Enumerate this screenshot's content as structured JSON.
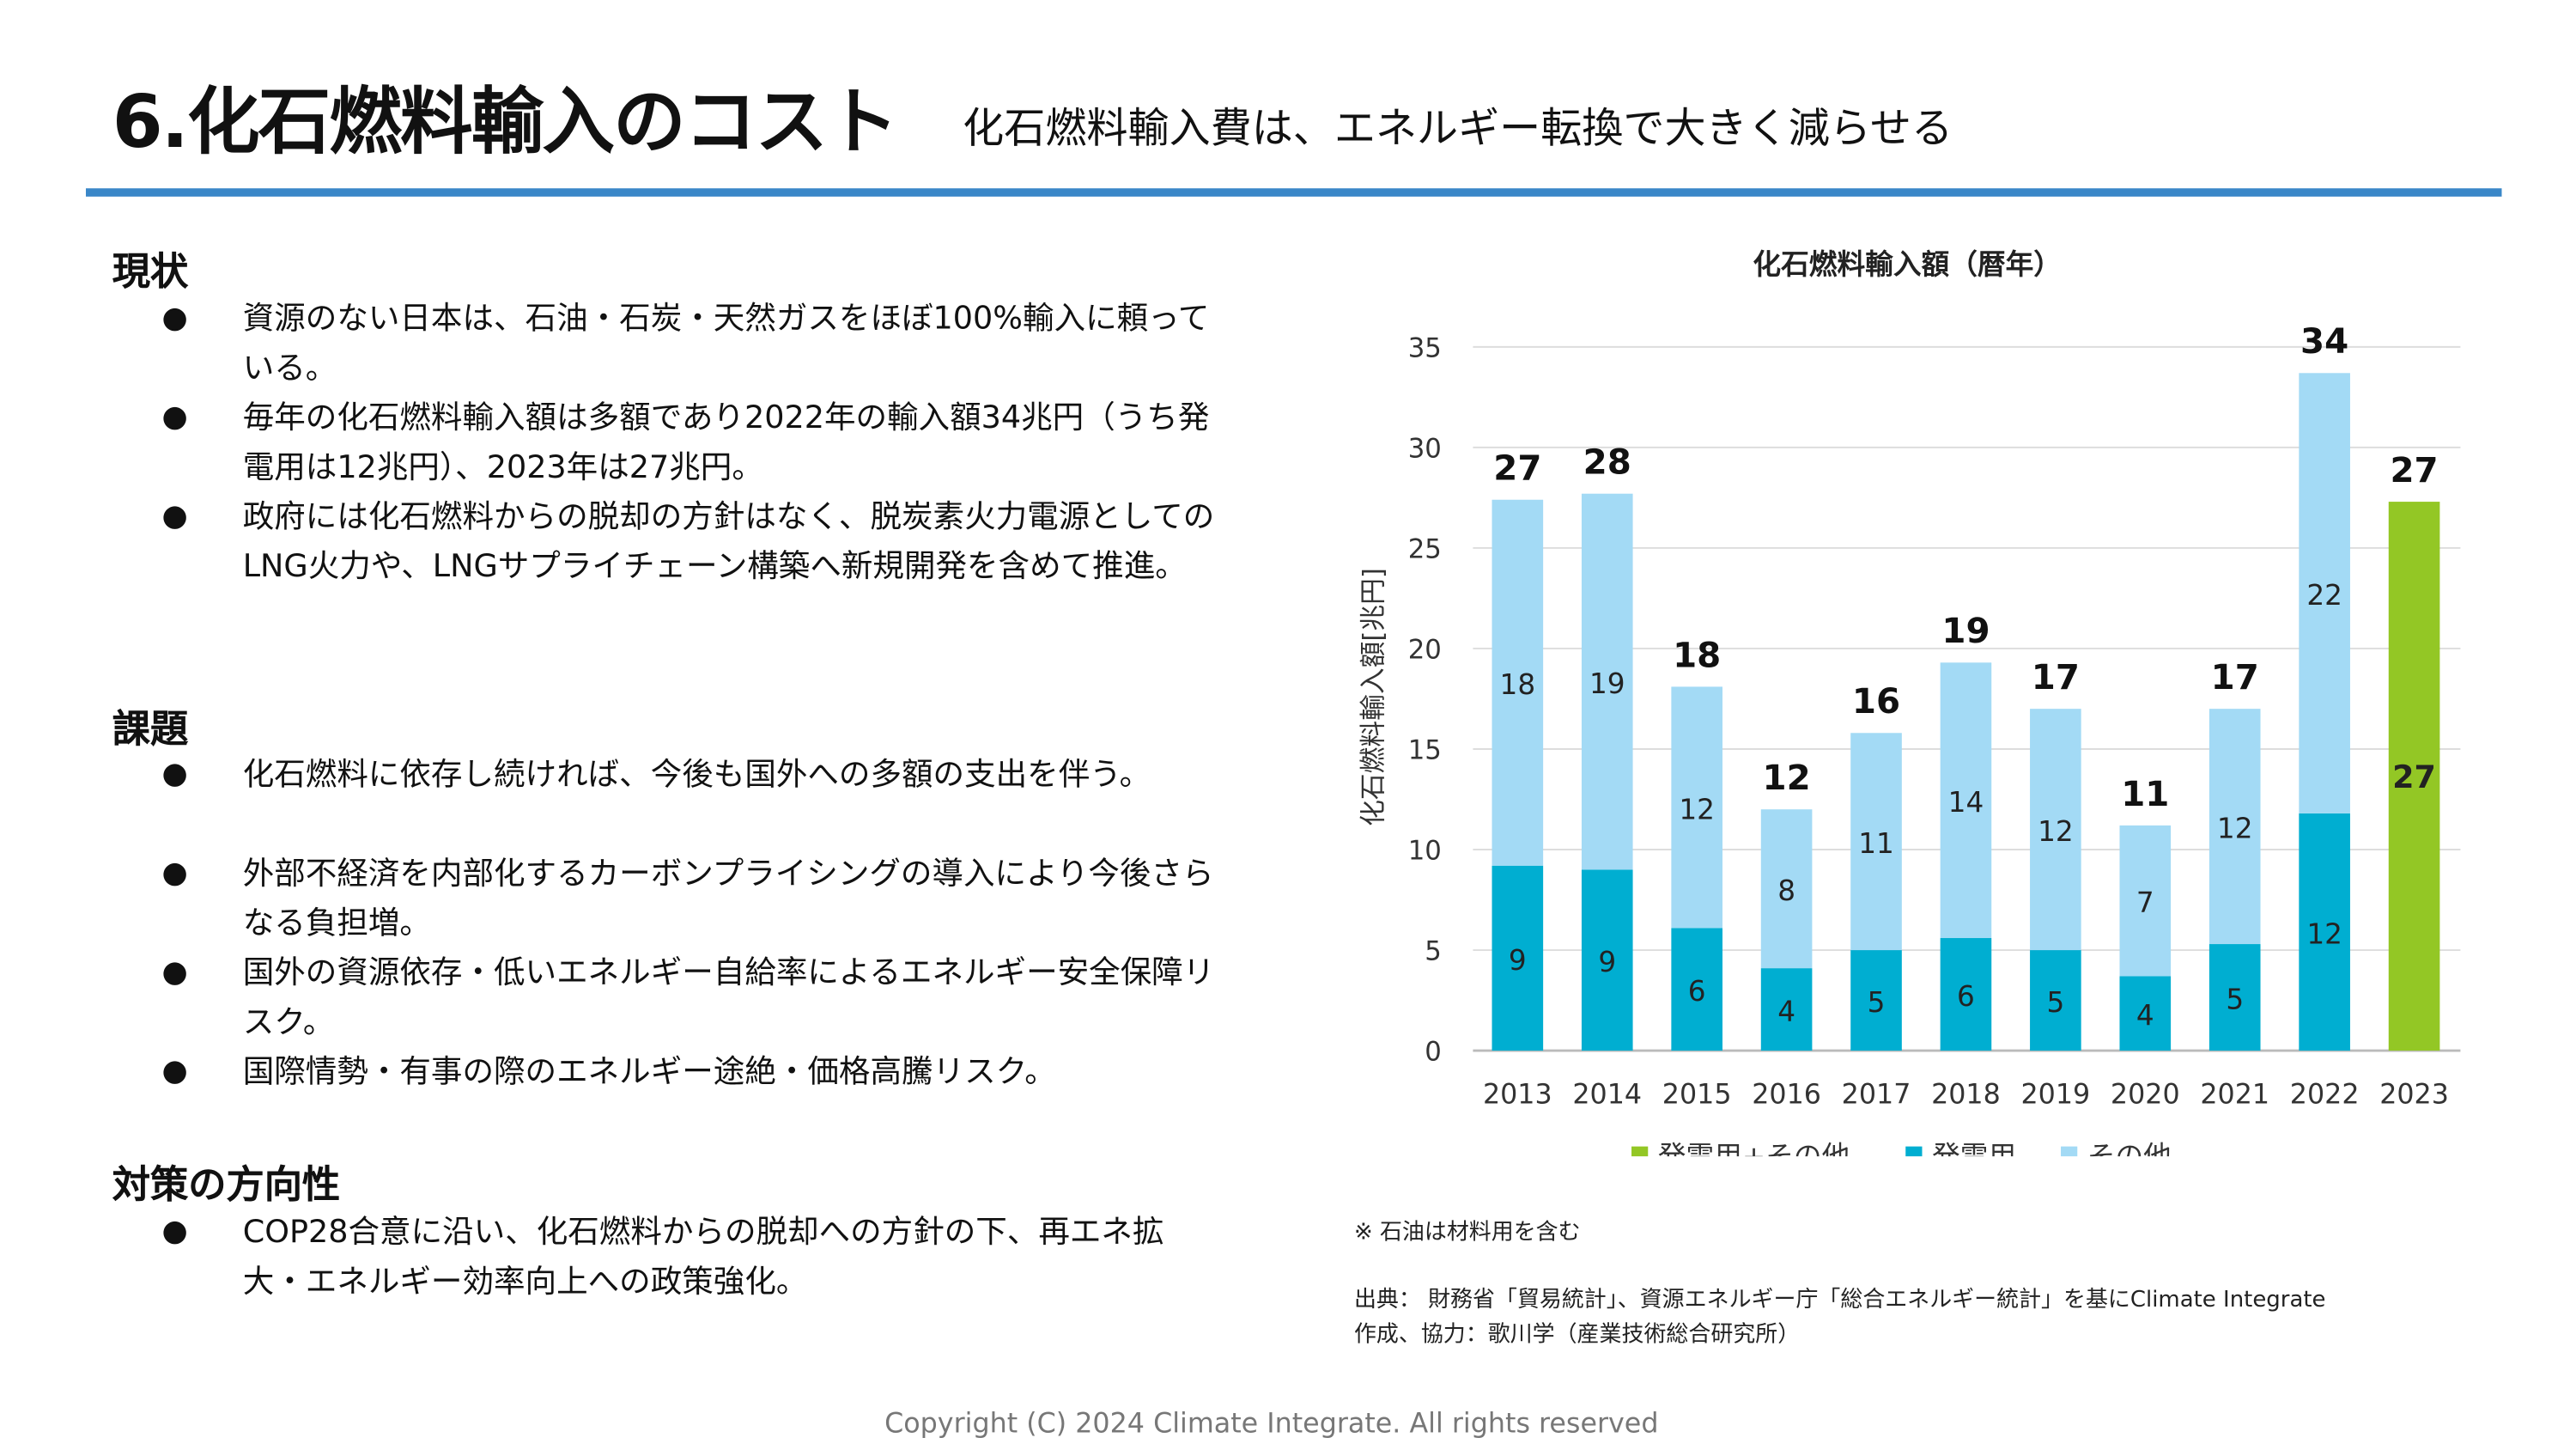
{
  "header": {
    "title": "6.化石燃料輸入のコスト",
    "subtitle": "化石燃料輸入費は、エネルギー転換で大きく減らせる",
    "rule_color": "#3a87c8"
  },
  "sections": [
    {
      "heading": "現状",
      "bullets": [
        "資源のない日本は、石油・石炭・天然ガスをほぼ100%輸入に頼っている。",
        "毎年の化石燃料輸入額は多額であり2022年の輸入額34兆円（うち発電用は12兆円）、2023年は27兆円。",
        "政府には化石燃料からの脱却の方針はなく、脱炭素火力電源としてのLNG火力や、LNGサプライチェーン構築へ新規開発を含めて推進。"
      ]
    },
    {
      "heading": "課題",
      "bullets": [
        "化石燃料に依存し続ければ、今後も国外への多額の支出を伴う。",
        "外部不経済を内部化するカーボンプライシングの導入により今後さらなる負担増。",
        "国外の資源依存・低いエネルギー自給率によるエネルギー安全保障リスク。",
        "国際情勢・有事の際のエネルギー途絶・価格高騰リスク。"
      ]
    },
    {
      "heading": "対策の方向性",
      "bullets": [
        "COP28合意に沿い、化石燃料からの脱却への方針の下、再エネ拡大・エネルギー効率向上への政策強化。"
      ]
    }
  ],
  "chart_data": {
    "type": "bar",
    "stacked": true,
    "title": "化石燃料輸入額（暦年）",
    "ylabel": "化石燃料輸入額[兆円]",
    "xlabel": "",
    "ylim": [
      0,
      35
    ],
    "yticks": [
      0,
      5,
      10,
      15,
      20,
      25,
      30,
      35
    ],
    "grid": true,
    "legend_position": "bottom",
    "categories": [
      "2013",
      "2014",
      "2015",
      "2016",
      "2017",
      "2018",
      "2019",
      "2020",
      "2021",
      "2022",
      "2023"
    ],
    "series": [
      {
        "name": "発電用+その他",
        "color": "#93c725",
        "values": [
          null,
          null,
          null,
          null,
          null,
          null,
          null,
          null,
          null,
          null,
          27.3
        ],
        "labels": [
          "",
          "",
          "",
          "",
          "",
          "",
          "",
          "",
          "",
          "",
          "27"
        ]
      },
      {
        "name": "発電用",
        "color": "#00aed1",
        "values": [
          9.2,
          9.0,
          6.1,
          4.1,
          5.0,
          5.6,
          5.0,
          3.7,
          5.3,
          11.8,
          null
        ],
        "labels": [
          "9",
          "9",
          "6",
          "4",
          "5",
          "6",
          "5",
          "4",
          "5",
          "12",
          ""
        ]
      },
      {
        "name": "その他",
        "color": "#a3daf5",
        "values": [
          18.2,
          18.7,
          12.0,
          7.9,
          10.8,
          13.7,
          12.0,
          7.5,
          11.7,
          21.9,
          null
        ],
        "labels": [
          "18",
          "19",
          "12",
          "8",
          "11",
          "14",
          "12",
          "7",
          "12",
          "22",
          ""
        ]
      }
    ],
    "totals": [
      "27",
      "28",
      "18",
      "12",
      "16",
      "19",
      "17",
      "11",
      "17",
      "34",
      "27"
    ]
  },
  "notes": {
    "note1": "※ 石油は材料用を含む",
    "source": "出典： 財務省「貿易統計」、資源エネルギー庁「総合エネルギー統計」を基にClimate Integrate",
    "credit": "作成、協力：歌川学（産業技術総合研究所）"
  },
  "footer": {
    "copyright": "Copyright (C) 2024 Climate Integrate. All rights reserved"
  },
  "icons": {
    "bullet": "●"
  }
}
